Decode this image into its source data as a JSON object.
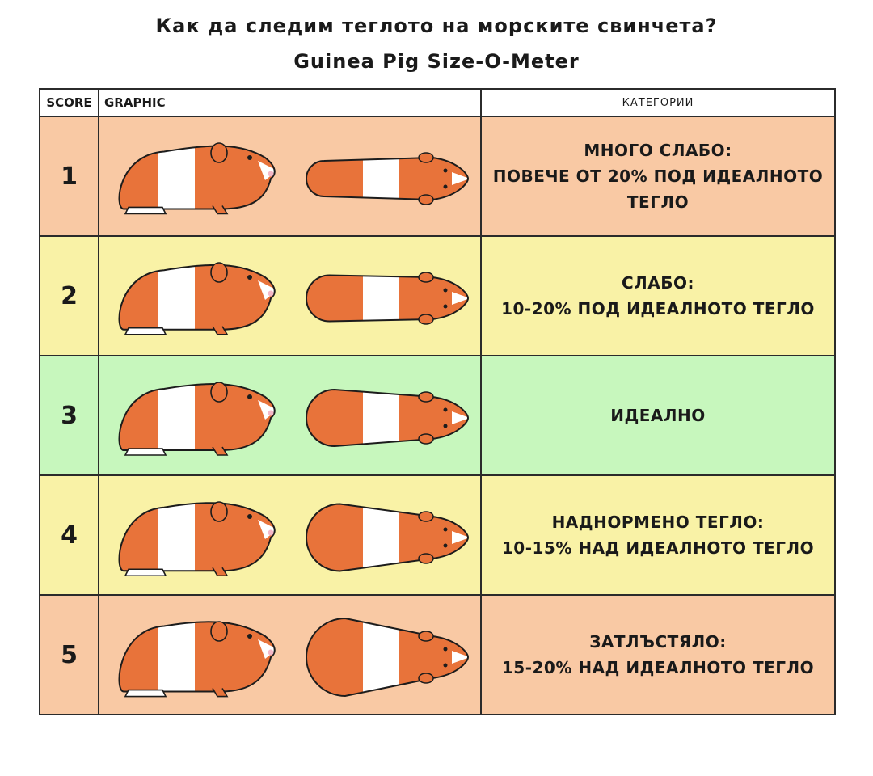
{
  "title": {
    "line1": "Как да следим теглото на морските свинчета?",
    "line2": "Guinea Pig Size-O-Meter"
  },
  "table": {
    "headers": {
      "score": "SCORE",
      "graphic": "GRAPHIC",
      "category": "КАТЕГОРИИ"
    },
    "rows": [
      {
        "score": "1",
        "color": "#f9c9a4",
        "width_factor": 0.72,
        "category_lines": [
          "МНОГО СЛАБО:",
          "ПОВЕЧЕ ОТ 20% ПОД ИДЕАЛНОТО",
          "ТЕГЛО"
        ]
      },
      {
        "score": "2",
        "color": "#f9f2a6",
        "width_factor": 0.86,
        "category_lines": [
          "СЛАБО:",
          "10-20% ПОД ИДЕАЛНОТО ТЕГЛО"
        ]
      },
      {
        "score": "3",
        "color": "#c7f7bd",
        "width_factor": 1.0,
        "category_lines": [
          "ИДЕАЛНО"
        ]
      },
      {
        "score": "4",
        "color": "#f9f2a6",
        "width_factor": 1.14,
        "category_lines": [
          "НАДНОРМЕНО ТЕГЛО:",
          "10-15% НАД ИДЕАЛНОТО ТЕГЛО"
        ]
      },
      {
        "score": "5",
        "color": "#f9c9a4",
        "width_factor": 1.28,
        "category_lines": [
          "ЗАТЛЪСТЯЛО:",
          "15-20% НАД ИДЕАЛНОТО ТЕГЛО"
        ]
      }
    ]
  },
  "colors": {
    "fur": "#e8733a",
    "white": "#ffffff",
    "outline": "#1c1c1c",
    "nose": "#f4b8c8"
  }
}
